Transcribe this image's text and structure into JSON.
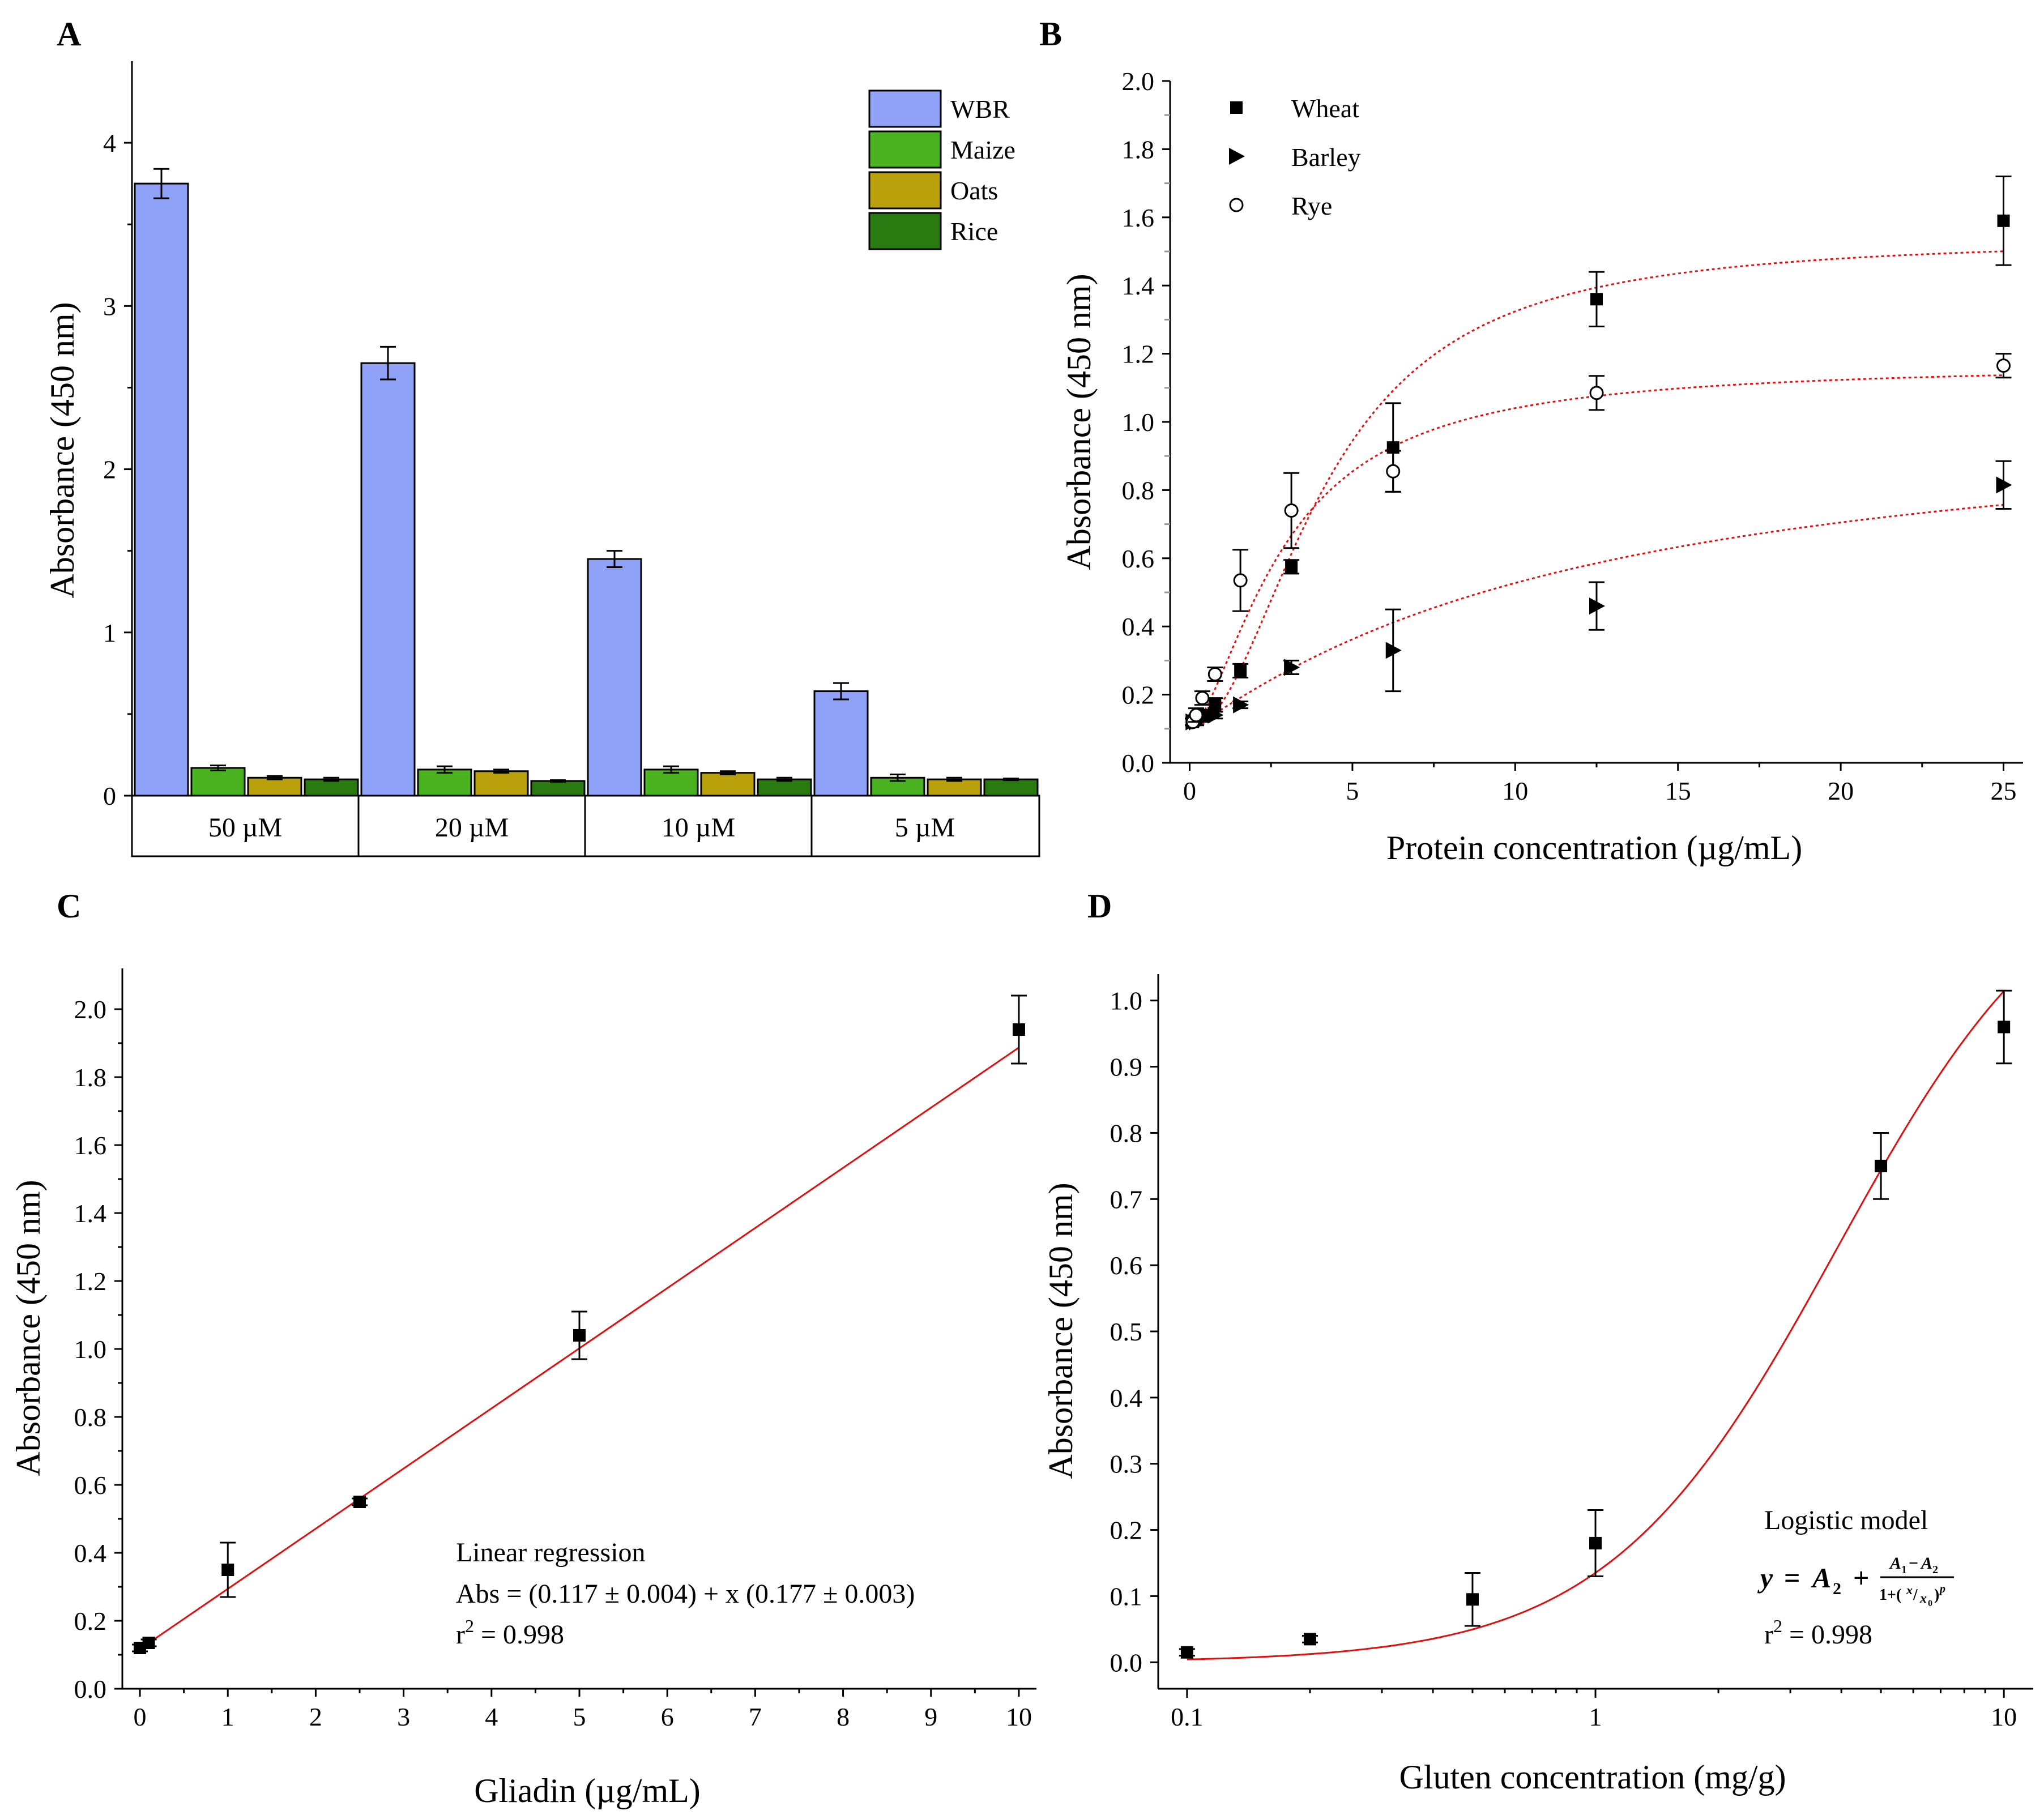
{
  "panels": {
    "A": {
      "letter": "A"
    },
    "B": {
      "letter": "B"
    },
    "C": {
      "letter": "C"
    },
    "D": {
      "letter": "D"
    }
  },
  "colors": {
    "WBR": "#8fa2f7",
    "Maize": "#4ab11f",
    "Oats": "#b9a00a",
    "Rice": "#2a7a12",
    "fit": "#e01010",
    "marker": "#000000"
  },
  "chart_data": [
    {
      "panel": "A",
      "type": "bar",
      "ylabel": "Absorbance (450 nm)",
      "ylim": [
        0,
        4.5
      ],
      "yticks": [
        0,
        1,
        2,
        3,
        4
      ],
      "categories": [
        "50 µM",
        "20 µM",
        "10 µM",
        "5 µM"
      ],
      "legend_position": "top-right",
      "series": [
        {
          "name": "WBR",
          "values": [
            3.75,
            2.65,
            1.45,
            0.64
          ],
          "errors": [
            0.09,
            0.1,
            0.05,
            0.05
          ]
        },
        {
          "name": "Maize",
          "values": [
            0.17,
            0.16,
            0.16,
            0.11
          ],
          "errors": [
            0.015,
            0.02,
            0.02,
            0.02
          ]
        },
        {
          "name": "Oats",
          "values": [
            0.11,
            0.15,
            0.14,
            0.1
          ],
          "errors": [
            0.01,
            0.01,
            0.01,
            0.01
          ]
        },
        {
          "name": "Rice",
          "values": [
            0.1,
            0.09,
            0.1,
            0.1
          ],
          "errors": [
            0.01,
            0.005,
            0.01,
            0.005
          ]
        }
      ]
    },
    {
      "panel": "B",
      "type": "scatter",
      "xlabel": "Protein concentration (µg/mL)",
      "ylabel": "Absorbance (450 nm)",
      "xlim": [
        -0.6,
        25.6
      ],
      "ylim": [
        0,
        2.0
      ],
      "xticks": [
        0,
        5,
        10,
        15,
        20,
        25
      ],
      "yticks": [
        0.0,
        0.2,
        0.4,
        0.6,
        0.8,
        1.0,
        1.2,
        1.4,
        1.6,
        1.8,
        2.0
      ],
      "legend_position": "top-left",
      "series": [
        {
          "name": "Wheat",
          "marker": "square",
          "x": [
            0.1,
            0.2,
            0.39,
            0.78,
            1.56,
            3.125,
            6.25,
            12.5,
            25
          ],
          "y": [
            0.12,
            0.13,
            0.14,
            0.17,
            0.27,
            0.575,
            0.925,
            1.36,
            1.59
          ],
          "err": [
            0.01,
            0.01,
            0.01,
            0.02,
            0.02,
            0.02,
            0.13,
            0.08,
            0.13
          ],
          "fit": {
            "model": "logistic",
            "A1": 0.1,
            "A2": 1.54,
            "x0": 4.2,
            "p": 2.0
          }
        },
        {
          "name": "Barley",
          "marker": "triangle-right",
          "x": [
            0.1,
            0.2,
            0.39,
            0.78,
            1.56,
            3.125,
            6.25,
            12.5,
            25
          ],
          "y": [
            0.12,
            0.12,
            0.13,
            0.14,
            0.17,
            0.28,
            0.33,
            0.46,
            0.815
          ],
          "err": [
            0.01,
            0.01,
            0.01,
            0.01,
            0.01,
            0.02,
            0.12,
            0.07,
            0.07
          ],
          "fit": {
            "model": "logistic",
            "A1": 0.1,
            "A2": 1.05,
            "x0": 12.0,
            "p": 1.1
          }
        },
        {
          "name": "Rye",
          "marker": "circle-open",
          "x": [
            0.1,
            0.2,
            0.39,
            0.78,
            1.56,
            3.125,
            6.25,
            12.5,
            25
          ],
          "y": [
            0.12,
            0.14,
            0.19,
            0.26,
            0.535,
            0.74,
            0.855,
            1.085,
            1.165
          ],
          "err": [
            0.01,
            0.02,
            0.02,
            0.02,
            0.09,
            0.11,
            0.06,
            0.05,
            0.035
          ],
          "fit": {
            "model": "logistic",
            "A1": 0.1,
            "A2": 1.17,
            "x0": 2.9,
            "p": 1.6
          }
        }
      ]
    },
    {
      "panel": "C",
      "type": "scatter",
      "xlabel": "Gliadin (µg/mL)",
      "ylabel": "Absorbance (450 nm)",
      "xlim": [
        -0.2,
        10.2
      ],
      "ylim": [
        0,
        2.12
      ],
      "xticks": [
        0,
        1,
        2,
        3,
        4,
        5,
        6,
        7,
        8,
        9,
        10
      ],
      "yticks": [
        0.0,
        0.2,
        0.4,
        0.6,
        0.8,
        1.0,
        1.2,
        1.4,
        1.6,
        1.8,
        2.0
      ],
      "series": [
        {
          "name": "Gliadin",
          "marker": "square",
          "x": [
            0,
            0.1,
            1,
            2.5,
            5,
            10
          ],
          "y": [
            0.12,
            0.135,
            0.35,
            0.55,
            1.04,
            1.94
          ],
          "err": [
            0.01,
            0.01,
            0.08,
            0.01,
            0.07,
            0.1
          ]
        }
      ],
      "fit": {
        "model": "linear",
        "intercept": 0.117,
        "slope": 0.177,
        "x_range": [
          0,
          10
        ]
      },
      "annotation": {
        "title": "Linear regression",
        "equation": "Abs = (0.117 ± 0.004) + x (0.177 ± 0.003)",
        "r2_prefix": "r",
        "r2_sup": "2",
        "r2_value": " =  0.998"
      }
    },
    {
      "panel": "D",
      "type": "scatter",
      "xlabel": "Gluten concentration (mg/g)",
      "ylabel": "Absorbance (450 nm)",
      "xscale": "log",
      "xlim": [
        0.085,
        11.8
      ],
      "ylim": [
        -0.04,
        1.04
      ],
      "xticks": [
        0.1,
        1,
        10
      ],
      "xticklabels": [
        "0.1",
        "1",
        "10"
      ],
      "yticks": [
        0.0,
        0.1,
        0.2,
        0.3,
        0.4,
        0.5,
        0.6,
        0.7,
        0.8,
        0.9,
        1.0
      ],
      "series": [
        {
          "name": "Gluten",
          "marker": "square",
          "x": [
            0.1,
            0.2,
            0.5,
            1,
            5,
            10
          ],
          "y": [
            0.015,
            0.035,
            0.095,
            0.18,
            0.75,
            0.96
          ],
          "err": [
            0.005,
            0.005,
            0.04,
            0.05,
            0.05,
            0.055
          ]
        }
      ],
      "fit": {
        "model": "logistic",
        "A1": 0.0,
        "A2": 1.25,
        "x0": 3.9,
        "p": 1.55,
        "x_range": [
          0.1,
          10
        ]
      },
      "annotation": {
        "title": "Logistic model",
        "r2_prefix": "r",
        "r2_sup": "2",
        "r2_value": " =  0.998"
      }
    }
  ]
}
